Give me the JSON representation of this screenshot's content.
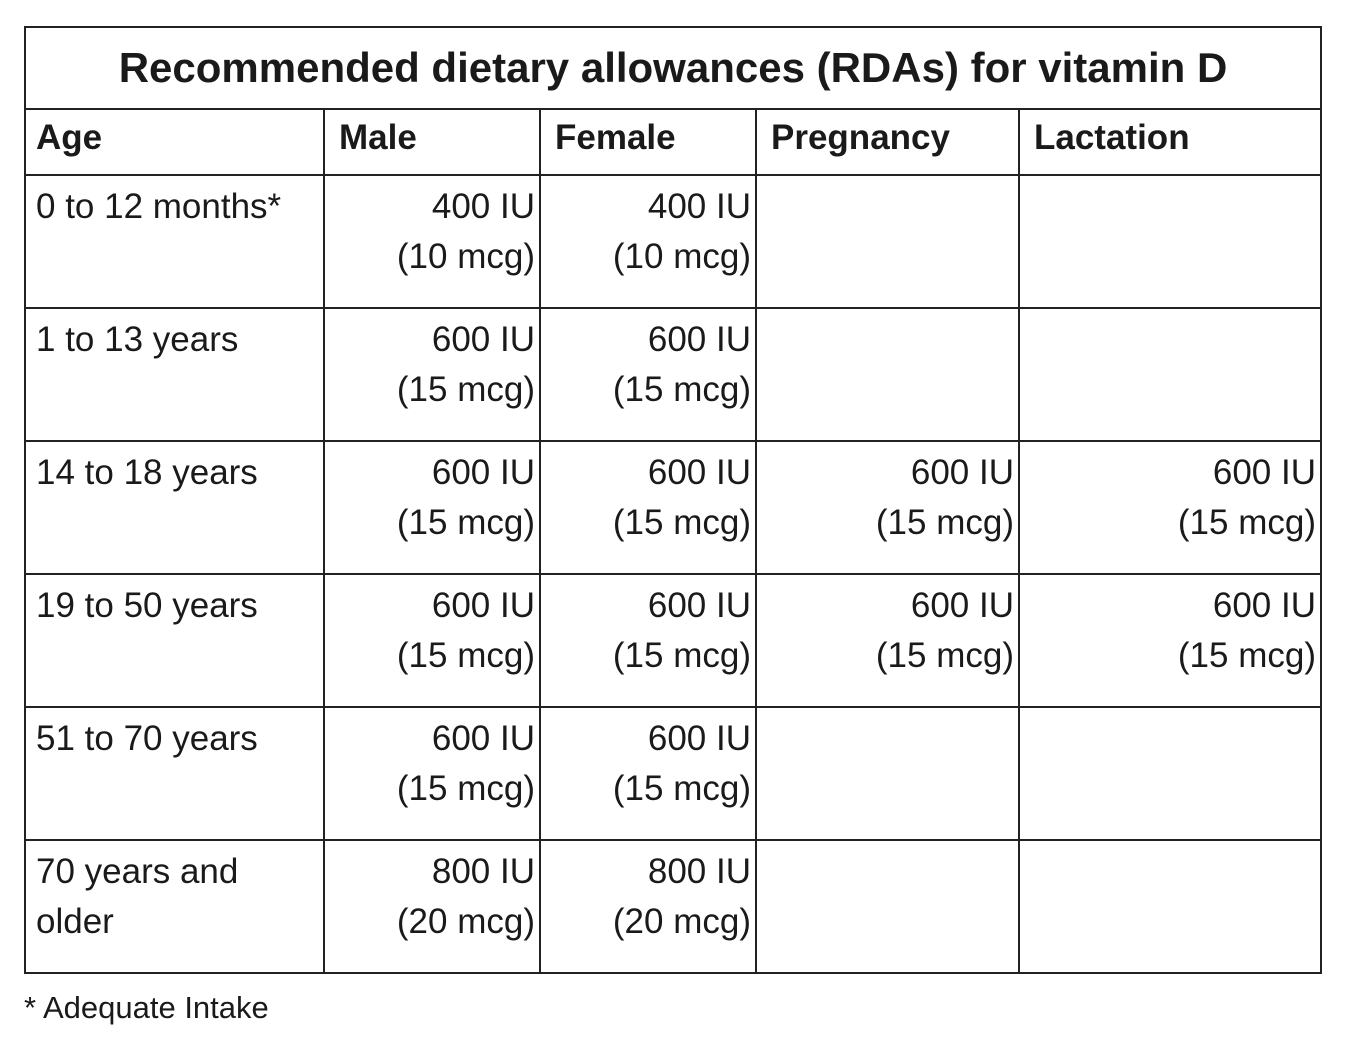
{
  "title": "Recommended dietary allowances (RDAs) for vitamin D",
  "headers": [
    "Age",
    "Male",
    "Female",
    "Pregnancy",
    "Lactation"
  ],
  "rows": [
    {
      "age": "0 to 12 months*",
      "male": {
        "iu": "400 IU",
        "mcg": "(10 mcg)"
      },
      "female": {
        "iu": "400 IU",
        "mcg": "(10 mcg)"
      },
      "pregnancy": {
        "iu": "",
        "mcg": ""
      },
      "lactation": {
        "iu": "",
        "mcg": ""
      }
    },
    {
      "age": "1 to 13 years",
      "male": {
        "iu": "600 IU",
        "mcg": "(15 mcg)"
      },
      "female": {
        "iu": "600 IU",
        "mcg": "(15 mcg)"
      },
      "pregnancy": {
        "iu": "",
        "mcg": ""
      },
      "lactation": {
        "iu": "",
        "mcg": ""
      }
    },
    {
      "age": "14 to 18 years",
      "male": {
        "iu": "600 IU",
        "mcg": "(15 mcg)"
      },
      "female": {
        "iu": "600 IU",
        "mcg": "(15 mcg)"
      },
      "pregnancy": {
        "iu": "600 IU",
        "mcg": "(15 mcg)"
      },
      "lactation": {
        "iu": "600 IU",
        "mcg": "(15 mcg)"
      }
    },
    {
      "age": "19 to 50 years",
      "male": {
        "iu": "600 IU",
        "mcg": "(15 mcg)"
      },
      "female": {
        "iu": "600 IU",
        "mcg": "(15 mcg)"
      },
      "pregnancy": {
        "iu": "600 IU",
        "mcg": "(15 mcg)"
      },
      "lactation": {
        "iu": "600 IU",
        "mcg": "(15 mcg)"
      }
    },
    {
      "age": "51 to 70 years",
      "male": {
        "iu": "600 IU",
        "mcg": "(15 mcg)"
      },
      "female": {
        "iu": "600 IU",
        "mcg": "(15 mcg)"
      },
      "pregnancy": {
        "iu": "",
        "mcg": ""
      },
      "lactation": {
        "iu": "",
        "mcg": ""
      }
    },
    {
      "age": "70 years and older",
      "male": {
        "iu": "800 IU",
        "mcg": "(20 mcg)"
      },
      "female": {
        "iu": "800 IU",
        "mcg": "(20 mcg)"
      },
      "pregnancy": {
        "iu": "",
        "mcg": ""
      },
      "lactation": {
        "iu": "",
        "mcg": ""
      }
    }
  ],
  "footnote": "* Adequate Intake"
}
